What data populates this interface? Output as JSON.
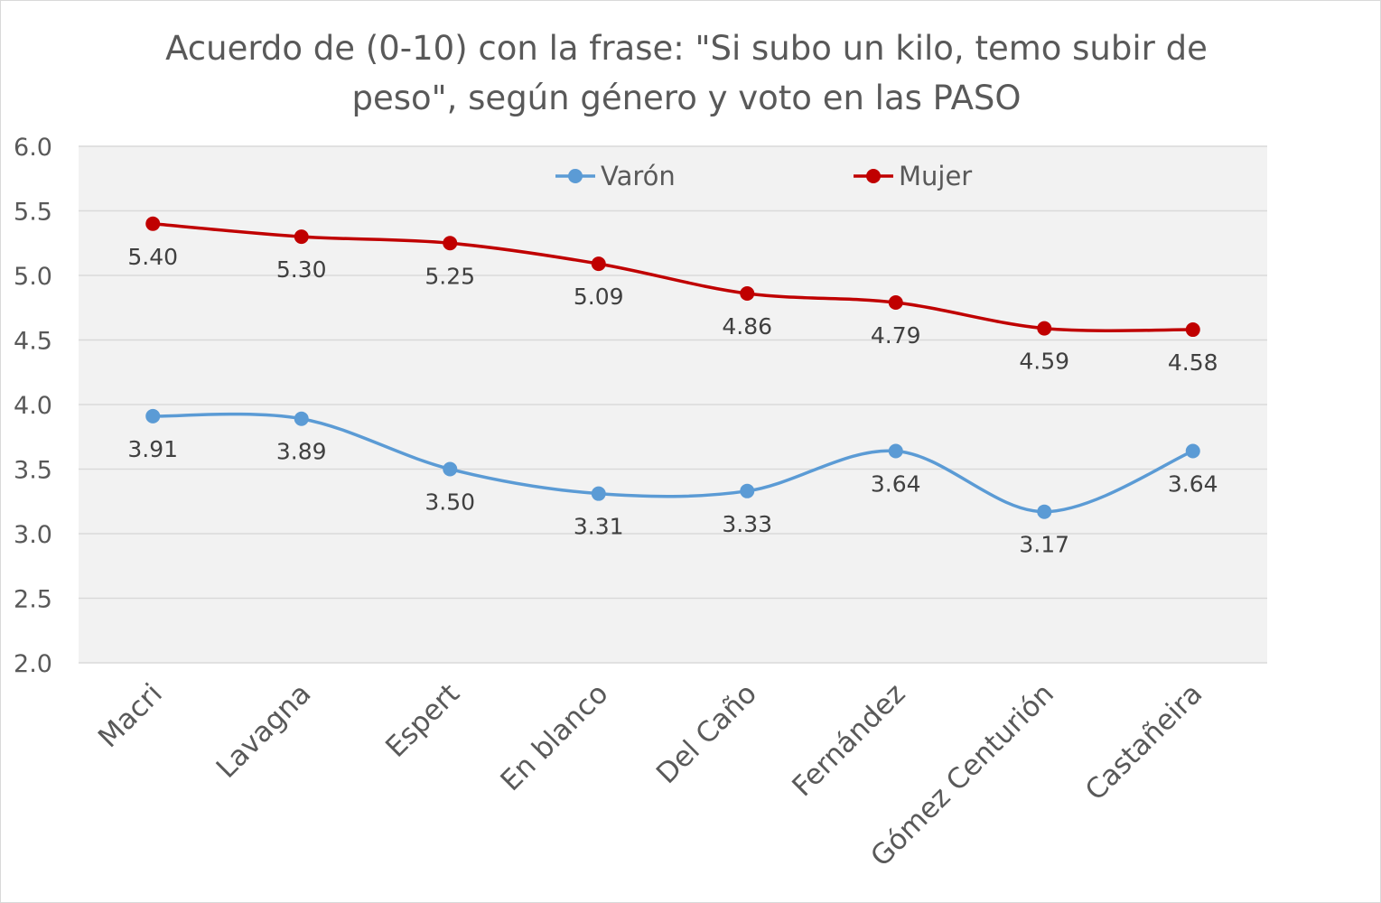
{
  "chart_data": {
    "type": "line",
    "title": "Acuerdo de (0-10) con la frase: \"Si subo un kilo, temo subir de peso\", según género y voto en las PASO",
    "xlabel": "",
    "ylabel": "",
    "categories": [
      "Macri",
      "Lavagna",
      "Espert",
      "En blanco",
      "Del Caño",
      "Fernández",
      "Gómez Centurión",
      "Castañeira"
    ],
    "ylim": [
      2.0,
      6.0
    ],
    "yticks": [
      "2.0",
      "2.5",
      "3.0",
      "3.5",
      "4.0",
      "4.5",
      "5.0",
      "5.5",
      "6.0"
    ],
    "grid": true,
    "legend_position": "top",
    "smooth": true,
    "series": [
      {
        "name": "Varón",
        "color": "#5b9bd5",
        "values": [
          3.91,
          3.89,
          3.5,
          3.31,
          3.33,
          3.64,
          3.17,
          3.64
        ],
        "labels": [
          "3.91",
          "3.89",
          "3.50",
          "3.31",
          "3.33",
          "3.64",
          "3.17",
          "3.64"
        ]
      },
      {
        "name": "Mujer",
        "color": "#c00000",
        "values": [
          5.4,
          5.3,
          5.25,
          5.09,
          4.86,
          4.79,
          4.59,
          4.58
        ],
        "labels": [
          "5.40",
          "5.30",
          "5.25",
          "5.09",
          "4.86",
          "4.79",
          "4.59",
          "4.58"
        ]
      }
    ]
  },
  "colors": {
    "plot_background": "#f2f2f2",
    "gridline": "#d9d9d9",
    "text": "#595959"
  }
}
